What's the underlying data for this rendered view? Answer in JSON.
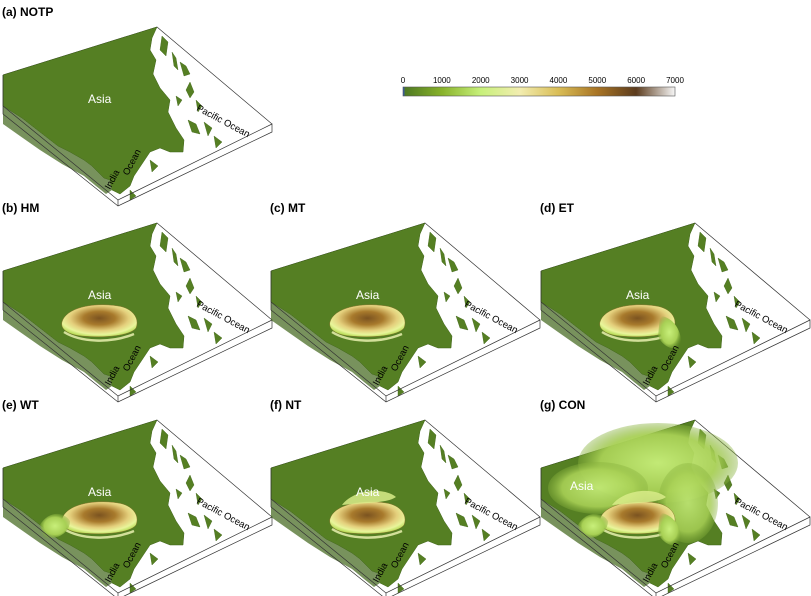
{
  "figure": {
    "colorbar": {
      "ticks": [
        "0",
        "1000",
        "2000",
        "3000",
        "4000",
        "5000",
        "6000",
        "7000"
      ],
      "stops": [
        {
          "value": 0,
          "color": "#2a4fd6"
        },
        {
          "value": 60,
          "color": "#4f7a22"
        },
        {
          "value": 1000,
          "color": "#88b22a"
        },
        {
          "value": 2000,
          "color": "#c7f07a"
        },
        {
          "value": 3000,
          "color": "#f2edb0"
        },
        {
          "value": 4000,
          "color": "#d9bd56"
        },
        {
          "value": 5000,
          "color": "#a87424"
        },
        {
          "value": 6000,
          "color": "#5c3c1e"
        },
        {
          "value": 7000,
          "color": "#f7f7f7"
        }
      ]
    },
    "colors": {
      "land": "#557f23",
      "land_dark": "#3f6418",
      "ocean": "#ffffff"
    },
    "panels": [
      {
        "id": "a",
        "title": "(a) NOTP",
        "labels": {
          "asia": "Asia",
          "pacific": "Pacific Ocean",
          "india": "India",
          "ocean": "Ocean"
        },
        "plateau": "none"
      },
      {
        "id": "b",
        "title": "(b) HM",
        "labels": {
          "asia": "Asia",
          "pacific": "Pacific Ocean",
          "india": "India",
          "ocean": "Ocean"
        },
        "plateau": "main"
      },
      {
        "id": "c",
        "title": "(c) MT",
        "labels": {
          "asia": "Asia",
          "pacific": "Pacific Ocean",
          "india": "India",
          "ocean": "Ocean"
        },
        "plateau": "main"
      },
      {
        "id": "d",
        "title": "(d) ET",
        "labels": {
          "asia": "Asia",
          "pacific": "Pacific Ocean",
          "india": "India",
          "ocean": "Ocean"
        },
        "plateau": "main+east"
      },
      {
        "id": "e",
        "title": "(e) WT",
        "labels": {
          "asia": "Asia",
          "pacific": "Pacific Ocean",
          "india": "India",
          "ocean": "Ocean"
        },
        "plateau": "main+west"
      },
      {
        "id": "f",
        "title": "(f) NT",
        "labels": {
          "asia": "Asia",
          "pacific": "Pacific Ocean",
          "india": "India",
          "ocean": "Ocean"
        },
        "plateau": "main+north"
      },
      {
        "id": "g",
        "title": "(g) CON",
        "labels": {
          "asia": "Asia",
          "pacific": "Pacific Ocean",
          "india": "India",
          "ocean": "Ocean"
        },
        "plateau": "full"
      }
    ]
  }
}
